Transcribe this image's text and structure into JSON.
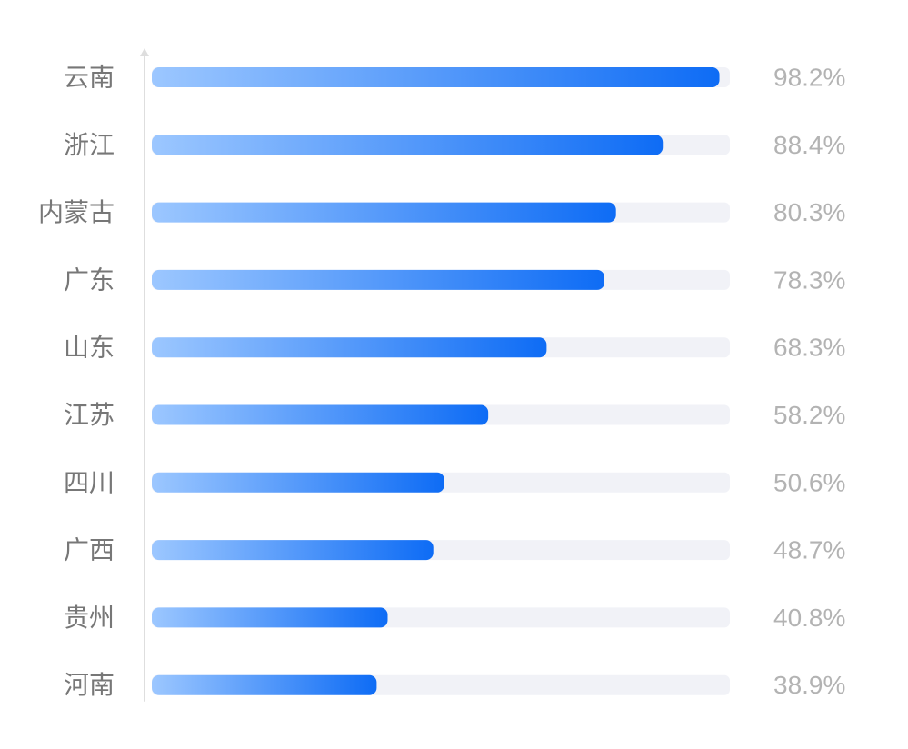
{
  "chart_data": {
    "type": "bar",
    "orientation": "horizontal",
    "categories": [
      "云南",
      "浙江",
      "内蒙古",
      "广东",
      "山东",
      "江苏",
      "四川",
      "广西",
      "贵州",
      "河南"
    ],
    "values": [
      98.2,
      88.4,
      80.3,
      78.3,
      68.3,
      58.2,
      50.6,
      48.7,
      40.8,
      38.9
    ],
    "value_labels": [
      "98.2%",
      "88.4%",
      "80.3%",
      "78.3%",
      "68.3%",
      "58.2%",
      "50.6%",
      "48.7%",
      "40.8%",
      "38.9%"
    ],
    "xlim": [
      0,
      100
    ],
    "grid": false,
    "legend": "none",
    "colors": {
      "bar_start": "#9cc7ff",
      "bar_end": "#0e6cf5",
      "track": "#f1f2f7",
      "axis": "#dedede",
      "category_text": "#777777",
      "value_text": "#b3b3b3"
    }
  }
}
